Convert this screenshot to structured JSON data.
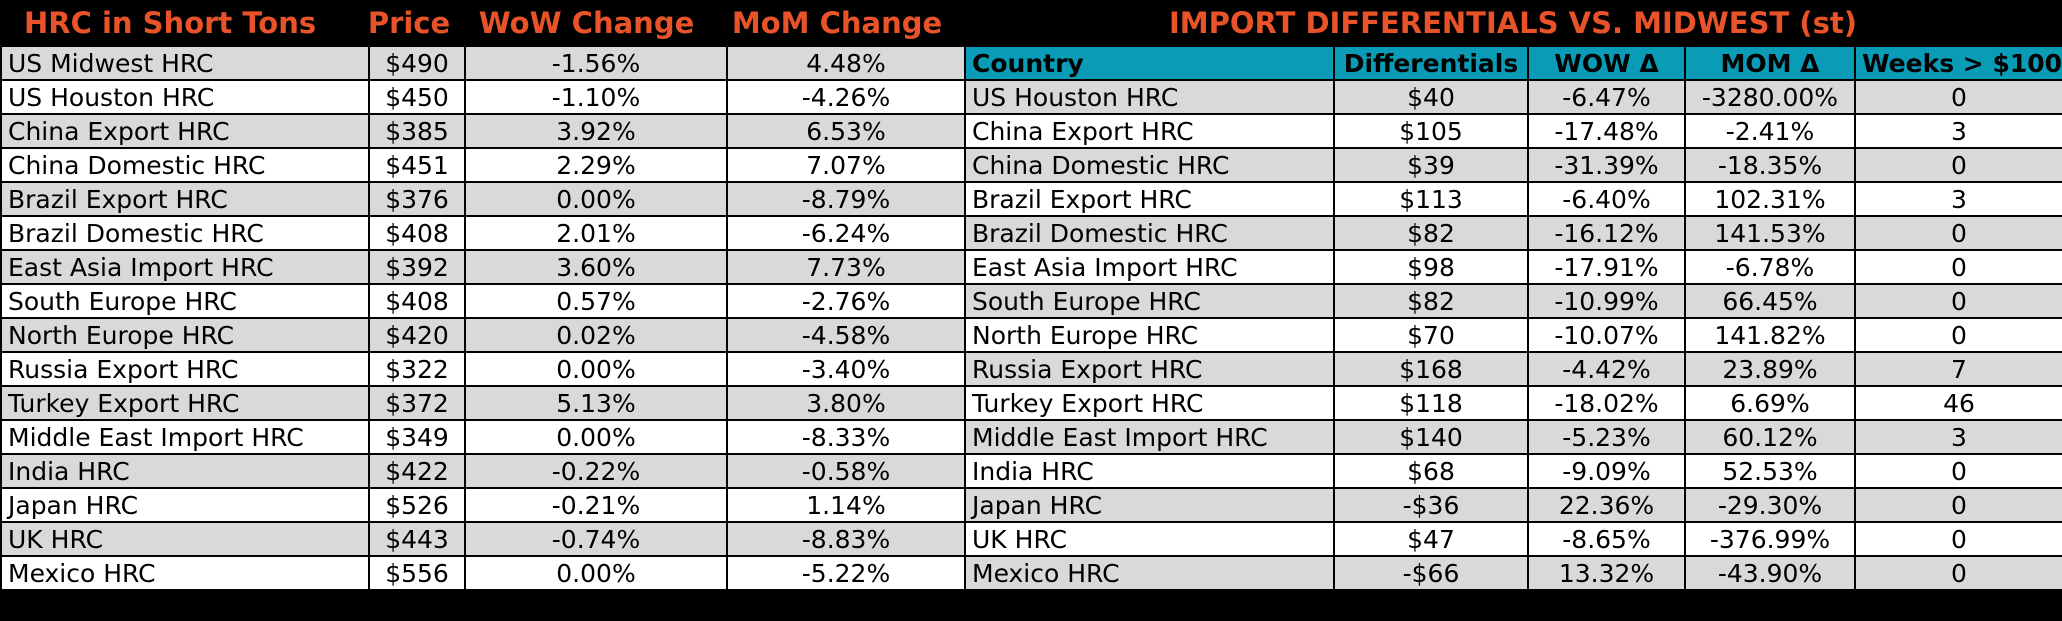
{
  "left": {
    "headers": [
      "HRC in Short Tons",
      "Price",
      "WoW Change",
      "MoM Change"
    ],
    "rows": [
      [
        "US Midwest HRC",
        "$490",
        "-1.56%",
        "4.48%"
      ],
      [
        "US Houston HRC",
        "$450",
        "-1.10%",
        "-4.26%"
      ],
      [
        "China Export HRC",
        "$385",
        "3.92%",
        "6.53%"
      ],
      [
        "China Domestic HRC",
        "$451",
        "2.29%",
        "7.07%"
      ],
      [
        "Brazil Export HRC",
        "$376",
        "0.00%",
        "-8.79%"
      ],
      [
        "Brazil Domestic HRC",
        "$408",
        "2.01%",
        "-6.24%"
      ],
      [
        "East Asia Import HRC",
        "$392",
        "3.60%",
        "7.73%"
      ],
      [
        "South Europe HRC",
        "$408",
        "0.57%",
        "-2.76%"
      ],
      [
        "North Europe HRC",
        "$420",
        "0.02%",
        "-4.58%"
      ],
      [
        "Russia Export HRC",
        "$322",
        "0.00%",
        "-3.40%"
      ],
      [
        "Turkey Export HRC",
        "$372",
        "5.13%",
        "3.80%"
      ],
      [
        "Middle East Import HRC",
        "$349",
        "0.00%",
        "-8.33%"
      ],
      [
        "India HRC",
        "$422",
        "-0.22%",
        "-0.58%"
      ],
      [
        "Japan HRC",
        "$526",
        "-0.21%",
        "1.14%"
      ],
      [
        "UK HRC",
        "$443",
        "-0.74%",
        "-8.83%"
      ],
      [
        "Mexico HRC",
        "$556",
        "0.00%",
        "-5.22%"
      ]
    ]
  },
  "right": {
    "title": "IMPORT DIFFERENTIALS VS. MIDWEST (st)",
    "headers": [
      "Country",
      "Differentials",
      "WOW Δ",
      "MOM Δ",
      "Weeks > $100"
    ],
    "rows": [
      [
        "US Houston HRC",
        "$40",
        "-6.47%",
        "-3280.00%",
        "0"
      ],
      [
        "China Export HRC",
        "$105",
        "-17.48%",
        "-2.41%",
        "3"
      ],
      [
        "China Domestic HRC",
        "$39",
        "-31.39%",
        "-18.35%",
        "0"
      ],
      [
        "Brazil Export HRC",
        "$113",
        "-6.40%",
        "102.31%",
        "3"
      ],
      [
        "Brazil Domestic HRC",
        "$82",
        "-16.12%",
        "141.53%",
        "0"
      ],
      [
        "East Asia Import HRC",
        "$98",
        "-17.91%",
        "-6.78%",
        "0"
      ],
      [
        "South Europe HRC",
        "$82",
        "-10.99%",
        "66.45%",
        "0"
      ],
      [
        "North Europe HRC",
        "$70",
        "-10.07%",
        "141.82%",
        "0"
      ],
      [
        "Russia Export HRC",
        "$168",
        "-4.42%",
        "23.89%",
        "7"
      ],
      [
        "Turkey Export HRC",
        "$118",
        "-18.02%",
        "6.69%",
        "46"
      ],
      [
        "Middle East Import HRC",
        "$140",
        "-5.23%",
        "60.12%",
        "3"
      ],
      [
        "India HRC",
        "$68",
        "-9.09%",
        "52.53%",
        "0"
      ],
      [
        "Japan HRC",
        "-$36",
        "22.36%",
        "-29.30%",
        "0"
      ],
      [
        "UK HRC",
        "$47",
        "-8.65%",
        "-376.99%",
        "0"
      ],
      [
        "Mexico HRC",
        "-$66",
        "13.32%",
        "-43.90%",
        "0"
      ]
    ]
  },
  "colors": {
    "header_text": "#e8532a",
    "header_fill": "#0a9cb6",
    "row_gray": "#d9d9d9",
    "row_white": "#ffffff",
    "background": "#000000"
  },
  "chart_data": {
    "type": "table"
  }
}
